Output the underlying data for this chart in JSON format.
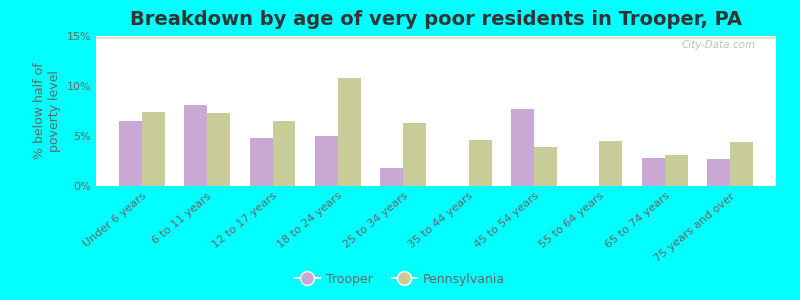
{
  "title": "Breakdown by age of very poor residents in Trooper, PA",
  "ylabel": "% below half of\npoverty level",
  "categories": [
    "Under 6 years",
    "6 to 11 years",
    "12 to 17 years",
    "18 to 24 years",
    "25 to 34 years",
    "35 to 44 years",
    "45 to 54 years",
    "55 to 64 years",
    "65 to 74 years",
    "75 years and over"
  ],
  "trooper": [
    6.5,
    8.1,
    4.8,
    5.0,
    1.8,
    0,
    7.7,
    0,
    2.8,
    2.7
  ],
  "pennsylvania": [
    7.4,
    7.3,
    6.5,
    10.8,
    6.3,
    4.6,
    3.9,
    4.5,
    3.1,
    4.4
  ],
  "trooper_color": "#c9a8d4",
  "pennsylvania_color": "#c8cc99",
  "background_color": "#00ffff",
  "plot_bg_top": "#eef3e2",
  "plot_bg_bottom": "#d8e8c8",
  "ylim": [
    0,
    15
  ],
  "yticks": [
    0,
    5,
    10,
    15
  ],
  "ytick_labels": [
    "0%",
    "5%",
    "10%",
    "15%"
  ],
  "bar_width": 0.35,
  "title_fontsize": 14,
  "axis_fontsize": 9,
  "tick_fontsize": 8,
  "legend_fontsize": 9,
  "watermark": "City-Data.com"
}
